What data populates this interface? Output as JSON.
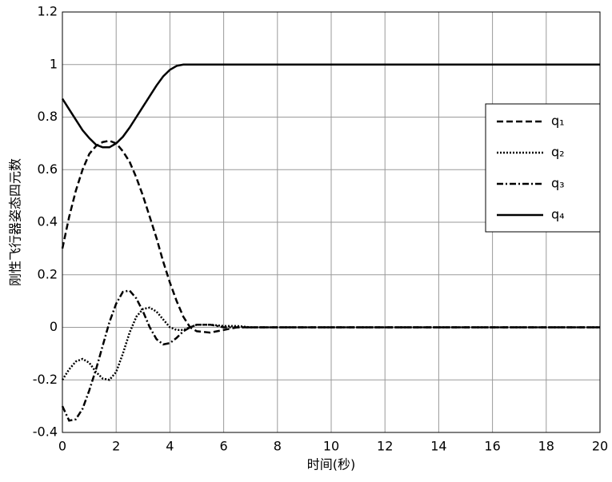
{
  "chart_data": {
    "type": "line",
    "xlabel": "时间(秒)",
    "ylabel": "刚性飞行器姿态四元数",
    "x": [
      0,
      0.25,
      0.5,
      0.75,
      1,
      1.25,
      1.5,
      1.75,
      2,
      2.25,
      2.5,
      2.75,
      3,
      3.25,
      3.5,
      3.75,
      4,
      4.25,
      4.5,
      4.75,
      5,
      5.5,
      6,
      6.5,
      7,
      8,
      10,
      12,
      14,
      16,
      18,
      20
    ],
    "series": [
      {
        "name": "q₁",
        "color": "#000000",
        "style": "dashed",
        "values": [
          0.3,
          0.42,
          0.52,
          0.6,
          0.66,
          0.69,
          0.705,
          0.71,
          0.7,
          0.67,
          0.63,
          0.57,
          0.5,
          0.42,
          0.34,
          0.25,
          0.17,
          0.1,
          0.04,
          0.0,
          -0.015,
          -0.02,
          -0.01,
          0,
          0,
          0,
          0,
          0,
          0,
          0,
          0,
          0
        ]
      },
      {
        "name": "q₂",
        "color": "#000000",
        "style": "dotted",
        "values": [
          -0.2,
          -0.16,
          -0.13,
          -0.12,
          -0.135,
          -0.17,
          -0.195,
          -0.2,
          -0.17,
          -0.1,
          -0.02,
          0.04,
          0.07,
          0.075,
          0.06,
          0.03,
          0.0,
          -0.01,
          -0.01,
          0.0,
          0.01,
          0.01,
          0.005,
          0.005,
          0,
          0,
          0,
          0,
          0,
          0,
          0,
          0
        ]
      },
      {
        "name": "q₃",
        "color": "#000000",
        "style": "dashdot",
        "values": [
          -0.3,
          -0.355,
          -0.35,
          -0.31,
          -0.24,
          -0.16,
          -0.07,
          0.02,
          0.09,
          0.135,
          0.14,
          0.11,
          0.06,
          0.0,
          -0.045,
          -0.065,
          -0.06,
          -0.04,
          -0.015,
          0.0,
          0.01,
          0.01,
          0,
          0,
          0,
          0,
          0,
          0,
          0,
          0,
          0,
          0
        ]
      },
      {
        "name": "q₄",
        "color": "#000000",
        "style": "solid",
        "values": [
          0.87,
          0.83,
          0.79,
          0.75,
          0.72,
          0.695,
          0.685,
          0.685,
          0.7,
          0.725,
          0.76,
          0.8,
          0.84,
          0.88,
          0.92,
          0.955,
          0.98,
          0.995,
          1,
          1,
          1,
          1,
          1,
          1,
          1,
          1,
          1,
          1,
          1,
          1,
          1,
          1
        ]
      }
    ],
    "xlim": [
      0,
      20
    ],
    "xticks": [
      0,
      2,
      4,
      6,
      8,
      10,
      12,
      14,
      16,
      18,
      20
    ],
    "ylim": [
      -0.4,
      1.2
    ],
    "yticks": [
      -0.4,
      -0.2,
      0,
      0.2,
      0.4,
      0.6,
      0.8,
      1,
      1.2
    ],
    "grid": true,
    "legend": "right"
  }
}
